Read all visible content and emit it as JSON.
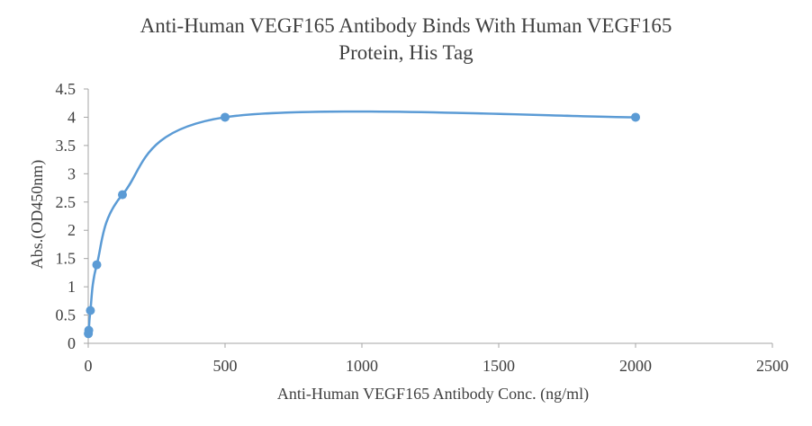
{
  "chart_data": {
    "type": "scatter",
    "title_lines": [
      "Anti-Human VEGF165 Antibody Binds With Human VEGF165",
      "Protein, His Tag"
    ],
    "xlabel": "Anti-Human VEGF165 Antibody Conc. (ng/ml)",
    "ylabel": "Abs.(OD450nm)",
    "xlim": [
      0,
      2500
    ],
    "ylim": [
      0,
      4.5
    ],
    "x_ticks": [
      0,
      500,
      1000,
      1500,
      2000,
      2500
    ],
    "x_tick_labels": [
      "0",
      "500",
      "1000",
      "1500",
      "2000",
      "2500"
    ],
    "y_ticks": [
      0,
      0.5,
      1,
      1.5,
      2,
      2.5,
      3,
      3.5,
      4,
      4.5
    ],
    "y_tick_labels": [
      "0",
      "0.5",
      "1",
      "1.5",
      "2",
      "2.5",
      "3",
      "3.5",
      "4",
      "4.5"
    ],
    "grid": false,
    "smoothed_line": true,
    "series": [
      {
        "color": "#5b9bd5",
        "points": [
          {
            "x": 0.5,
            "y": 0.17
          },
          {
            "x": 2,
            "y": 0.23
          },
          {
            "x": 8,
            "y": 0.58
          },
          {
            "x": 31.25,
            "y": 1.39
          },
          {
            "x": 125,
            "y": 2.63
          },
          {
            "x": 500,
            "y": 4.0
          },
          {
            "x": 2000,
            "y": 4.0
          }
        ]
      }
    ]
  }
}
